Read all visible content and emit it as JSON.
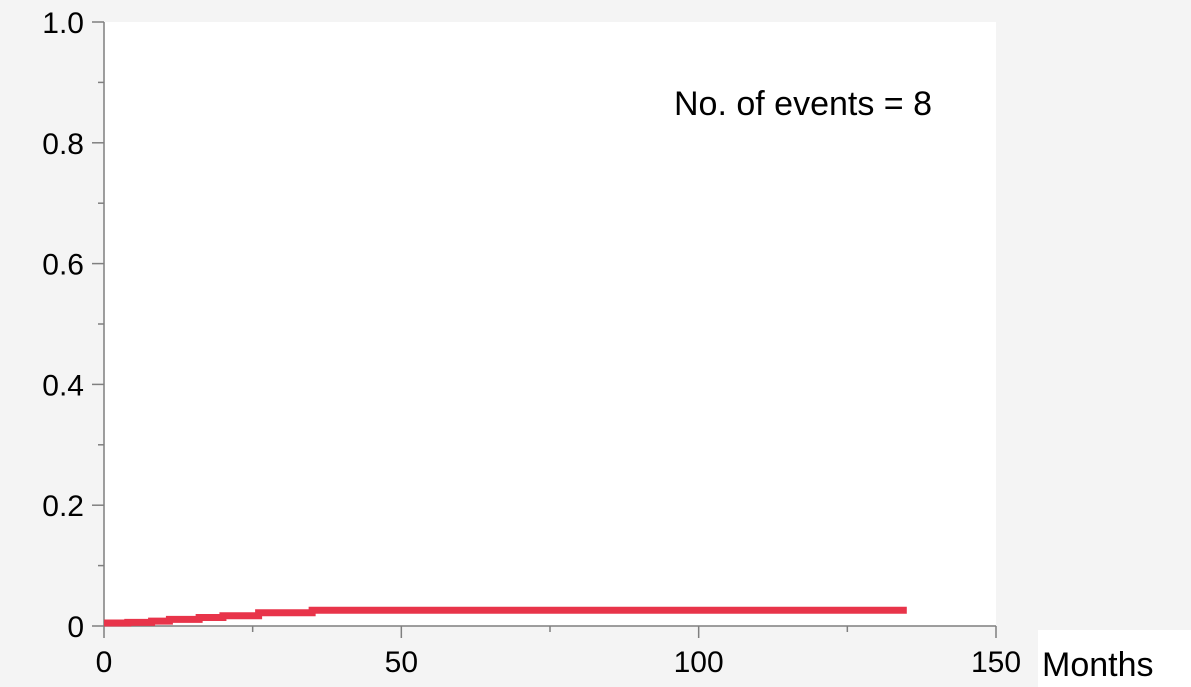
{
  "chart_data": {
    "type": "line",
    "title": "",
    "xlabel": "Months",
    "ylabel": "",
    "xlim": [
      0,
      150
    ],
    "ylim": [
      0,
      1.0
    ],
    "x_ticks": [
      0,
      50,
      100,
      150
    ],
    "x_tick_labels": [
      "0",
      "50",
      "100",
      "150"
    ],
    "y_ticks": [
      0,
      0.2,
      0.4,
      0.6,
      0.8,
      1.0
    ],
    "y_tick_labels": [
      "0",
      "0.2",
      "0.4",
      "0.6",
      "0.8",
      "1.0"
    ],
    "grid": false,
    "annotation": "No. of events = 8",
    "series": [
      {
        "color": "#e8344a",
        "step": true,
        "x": [
          0,
          4,
          8,
          11,
          16,
          20,
          26,
          35,
          135
        ],
        "y": [
          0.005,
          0.006,
          0.008,
          0.011,
          0.014,
          0.017,
          0.022,
          0.026,
          0.026
        ]
      }
    ]
  },
  "colors": {
    "background": "#f4f4f4",
    "plot_area": "#ffffff",
    "axis": "#7f7f7f",
    "curve": "#e8344a"
  }
}
